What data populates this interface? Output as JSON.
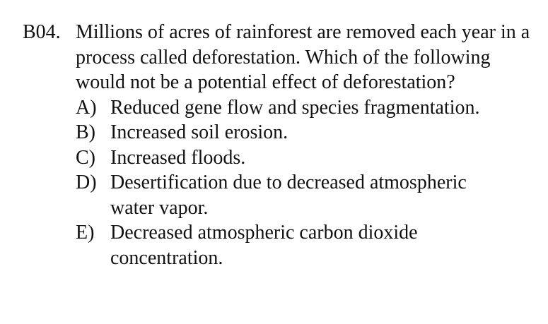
{
  "question": {
    "number": "B04.",
    "stem": "Millions of acres of rainforest are removed each year in a process called deforestation.  Which of the following would not be a potential effect of deforestation?",
    "options": [
      {
        "letter": "A)",
        "text": "Reduced gene flow and species fragmentation."
      },
      {
        "letter": "B)",
        "text": "Increased soil erosion."
      },
      {
        "letter": "C)",
        "text": "Increased floods."
      },
      {
        "letter": "D)",
        "text": "Desertification due to decreased atmospheric water vapor."
      },
      {
        "letter": "E)",
        "text": "Decreased atmospheric carbon dioxide concentration."
      }
    ]
  }
}
